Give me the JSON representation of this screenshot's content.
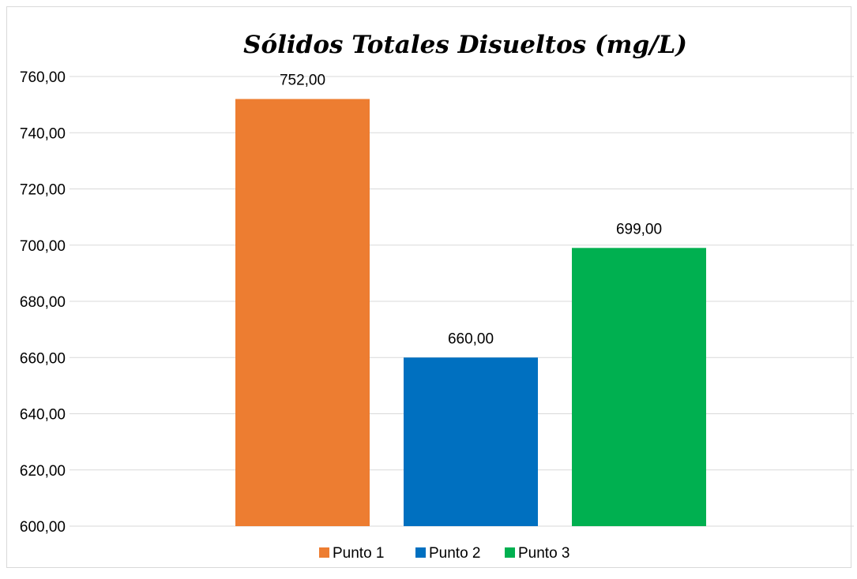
{
  "chart_data": {
    "type": "bar",
    "title": "Sólidos Totales Disueltos (mg/L)",
    "categories": [
      "Punto 1",
      "Punto 2",
      "Punto 3"
    ],
    "values": [
      752,
      660,
      699
    ],
    "value_labels": [
      "752,00",
      "660,00",
      "699,00"
    ],
    "colors": [
      "#ED7D31",
      "#0070C0",
      "#00B050"
    ],
    "ylim": [
      600,
      760
    ],
    "yticks": [
      600,
      620,
      640,
      660,
      680,
      700,
      720,
      740,
      760
    ],
    "ytick_labels": [
      "600,00",
      "620,00",
      "640,00",
      "660,00",
      "680,00",
      "700,00",
      "720,00",
      "740,00",
      "760,00"
    ],
    "grid": true,
    "legend_position": "bottom",
    "legend": [
      "Punto 1",
      "Punto 2",
      "Punto 3"
    ]
  }
}
